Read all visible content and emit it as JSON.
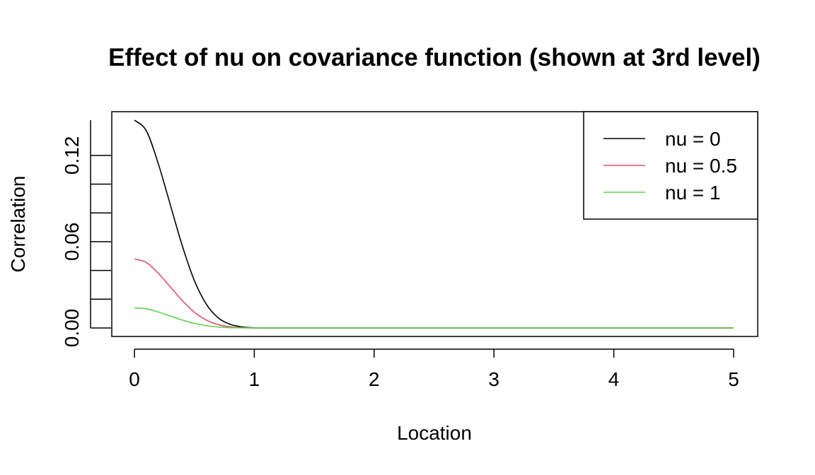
{
  "chart_data": {
    "type": "line",
    "title": "Effect of nu on covariance function (shown at 3rd level)",
    "xlabel": "Location",
    "ylabel": "Correlation",
    "xlim": [
      0,
      5
    ],
    "ylim": [
      0,
      0.14
    ],
    "x_ticks": [
      0,
      1,
      2,
      3,
      4,
      5
    ],
    "x_tick_labels": [
      "0",
      "1",
      "2",
      "3",
      "4",
      "5"
    ],
    "y_ticks_labeled": [
      0,
      0.06,
      0.12
    ],
    "y_tick_labels": [
      "0.00",
      "0.06",
      "0.12"
    ],
    "y_ticks_minor": [
      0.02,
      0.04,
      0.08,
      0.1
    ],
    "grid": false,
    "legend_position": "top-right",
    "series": [
      {
        "name": "nu = 0",
        "color": "#000000",
        "x": [
          0,
          0.1,
          0.2,
          0.3,
          0.4,
          0.5,
          0.6,
          0.7,
          0.8,
          0.9,
          1.0,
          1.1,
          1.2,
          1.5,
          2,
          3,
          4,
          5
        ],
        "y": [
          0.1445,
          0.137,
          0.114,
          0.0855,
          0.057,
          0.033,
          0.0165,
          0.007,
          0.0025,
          0.0007,
          0.0001,
          0,
          0,
          0,
          0,
          0,
          0,
          0
        ]
      },
      {
        "name": "nu = 0.5",
        "color": "#DF536B",
        "x": [
          0,
          0.1,
          0.2,
          0.3,
          0.4,
          0.5,
          0.6,
          0.7,
          0.8,
          0.9,
          1.0,
          1.1,
          1.2,
          1.5,
          2,
          3,
          4,
          5
        ],
        "y": [
          0.048,
          0.0455,
          0.038,
          0.0285,
          0.019,
          0.011,
          0.0055,
          0.0023,
          0.0008,
          0.0002,
          0,
          0,
          0,
          0,
          0,
          0,
          0,
          0
        ]
      },
      {
        "name": "nu = 1",
        "color": "#61D04F",
        "x": [
          0,
          0.1,
          0.2,
          0.3,
          0.4,
          0.5,
          0.6,
          0.7,
          0.8,
          0.9,
          1.0,
          1.1,
          1.2,
          1.5,
          2,
          3,
          4,
          5
        ],
        "y": [
          0.014,
          0.0133,
          0.0111,
          0.0083,
          0.0055,
          0.0032,
          0.0016,
          0.0007,
          0.0002,
          0.0001,
          0,
          0,
          0,
          0,
          0,
          0,
          0,
          0
        ]
      }
    ]
  }
}
